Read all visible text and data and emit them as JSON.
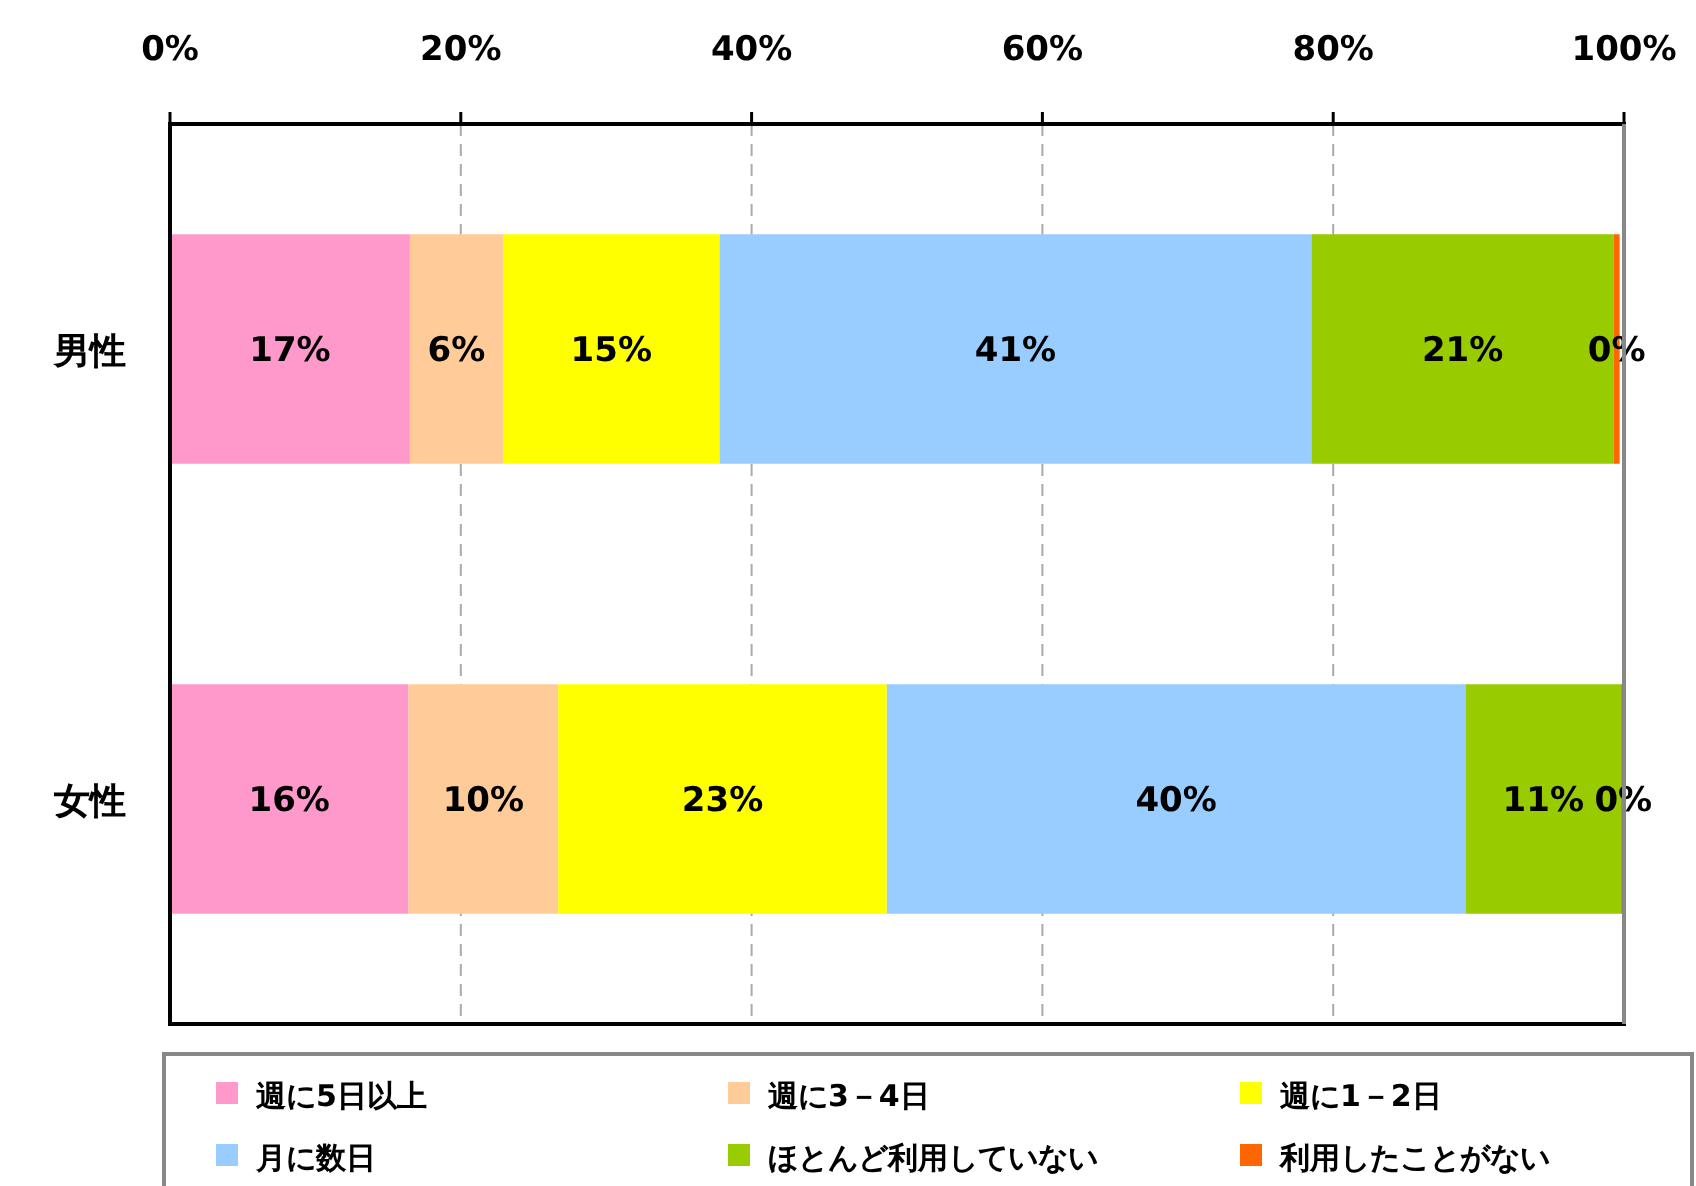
{
  "chart_data": {
    "type": "bar",
    "orientation": "horizontal",
    "stacked": true,
    "categories": [
      "男性",
      "女性"
    ],
    "series": [
      {
        "name": "週に5日以上",
        "color": "#ff99cc",
        "values": [
          16.5,
          16.4
        ],
        "value_labels": [
          "17%",
          "16%"
        ]
      },
      {
        "name": "週に3－4日",
        "color": "#ffcc99",
        "values": [
          6.4,
          10.3
        ],
        "value_labels": [
          "6%",
          "10%"
        ]
      },
      {
        "name": "週に1－2日",
        "color": "#ffff00",
        "values": [
          14.9,
          22.6
        ],
        "value_labels": [
          "15%",
          "23%"
        ]
      },
      {
        "name": "月に数日",
        "color": "#99ccff",
        "values": [
          40.7,
          39.8
        ],
        "value_labels": [
          "41%",
          "40%"
        ]
      },
      {
        "name": "ほとんど利用していない",
        "color": "#99cc00",
        "values": [
          20.8,
          10.7
        ],
        "value_labels": [
          "21%",
          "11%"
        ]
      },
      {
        "name": "利用したことがない",
        "color": "#ff6600",
        "values": [
          0.4,
          0.3
        ],
        "value_labels": [
          "0%",
          "0%"
        ]
      }
    ],
    "xlim": [
      0,
      100
    ],
    "xticks": [
      {
        "value": 0,
        "label": "0%"
      },
      {
        "value": 20,
        "label": "20%"
      },
      {
        "value": 40,
        "label": "40%"
      },
      {
        "value": 60,
        "label": "60%"
      },
      {
        "value": 80,
        "label": "80%"
      },
      {
        "value": 100,
        "label": "100%"
      }
    ],
    "grid": "x",
    "legend": "bottom"
  }
}
